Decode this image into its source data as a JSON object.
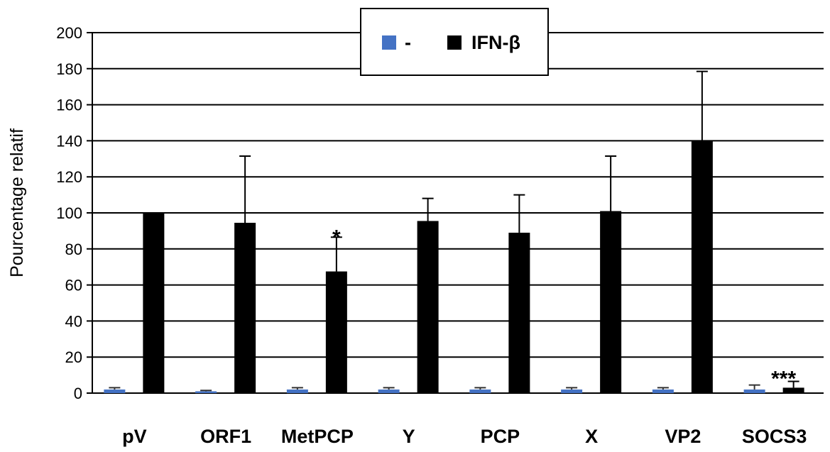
{
  "chart_data": {
    "type": "bar",
    "ylabel": "Pourcentage relatif",
    "xlabel": "",
    "ylim": [
      0,
      200
    ],
    "yticks": [
      0,
      20,
      40,
      60,
      80,
      100,
      120,
      140,
      160,
      180,
      200
    ],
    "grid": true,
    "legend_position": "top-center",
    "categories": [
      "pV",
      "ORF1",
      "MetPCP",
      "Y",
      "PCP",
      "X",
      "VP2",
      "SOCS3"
    ],
    "series": [
      {
        "name": "-",
        "color": "#4472C4",
        "values": [
          2,
          1,
          2,
          2,
          2,
          2,
          2,
          2
        ],
        "errors": [
          1,
          0.5,
          1,
          1,
          1,
          1,
          1,
          2.5
        ]
      },
      {
        "name": "IFN-β",
        "color": "#000000",
        "values": [
          100,
          94.5,
          67.5,
          95.5,
          89,
          101,
          140,
          3
        ],
        "errors": [
          0,
          37,
          19,
          12.5,
          21,
          30.5,
          38.5,
          3.5
        ]
      }
    ],
    "annotations": [
      "",
      "",
      "*",
      "",
      "",
      "",
      "",
      "***"
    ]
  }
}
